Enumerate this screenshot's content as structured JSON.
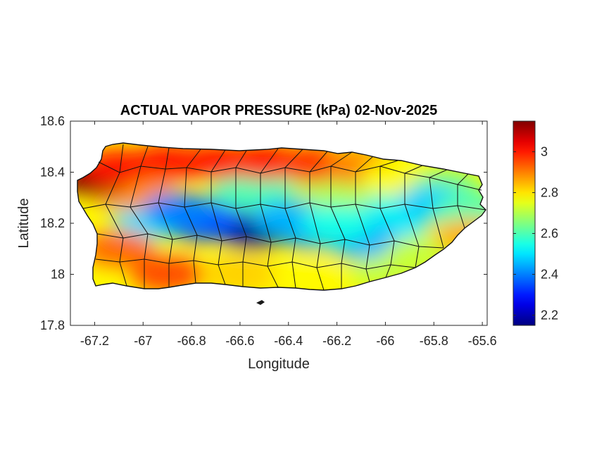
{
  "chart_data": {
    "type": "heatmap",
    "title": "ACTUAL VAPOR PRESSURE (kPa) 02-Nov-2025",
    "xlabel": "Longitude",
    "ylabel": "Latitude",
    "xlim": [
      -67.3,
      -65.58
    ],
    "ylim": [
      17.8,
      18.6
    ],
    "x_ticks": [
      -67.2,
      -67,
      -66.8,
      -66.6,
      -66.4,
      -66.2,
      -66,
      -65.8,
      -65.6
    ],
    "x_tick_labels": [
      "-67.2",
      "-67",
      "-66.8",
      "-66.6",
      "-66.4",
      "-66.2",
      "-66",
      "-65.8",
      "-65.6"
    ],
    "y_ticks": [
      17.8,
      18,
      18.2,
      18.4,
      18.6
    ],
    "y_tick_labels": [
      "17.8",
      "18",
      "18.2",
      "18.4",
      "18.6"
    ],
    "colorbar": {
      "colormap": "jet",
      "range": [
        2.15,
        3.15
      ],
      "ticks": [
        2.2,
        2.4,
        2.6,
        2.8,
        3.0
      ],
      "tick_labels": [
        "2.2",
        "2.4",
        "2.6",
        "2.8",
        "3"
      ]
    },
    "grid": false,
    "field_points": [
      {
        "lon": -67.2,
        "lat": 18.38,
        "value": 3.15
      },
      {
        "lon": -67.1,
        "lat": 18.42,
        "value": 3.0
      },
      {
        "lon": -66.9,
        "lat": 18.44,
        "value": 3.0
      },
      {
        "lon": -66.7,
        "lat": 18.44,
        "value": 3.0
      },
      {
        "lon": -66.5,
        "lat": 18.44,
        "value": 3.0
      },
      {
        "lon": -66.3,
        "lat": 18.43,
        "value": 2.98
      },
      {
        "lon": -66.1,
        "lat": 18.42,
        "value": 2.9
      },
      {
        "lon": -65.95,
        "lat": 18.38,
        "value": 2.78
      },
      {
        "lon": -65.75,
        "lat": 18.34,
        "value": 2.65
      },
      {
        "lon": -65.8,
        "lat": 18.28,
        "value": 2.48
      },
      {
        "lon": -65.65,
        "lat": 18.25,
        "value": 2.6
      },
      {
        "lon": -66.55,
        "lat": 18.17,
        "value": 2.15
      },
      {
        "lon": -66.75,
        "lat": 18.2,
        "value": 2.35
      },
      {
        "lon": -66.85,
        "lat": 18.25,
        "value": 2.4
      },
      {
        "lon": -66.4,
        "lat": 18.22,
        "value": 2.45
      },
      {
        "lon": -66.1,
        "lat": 18.13,
        "value": 2.45
      },
      {
        "lon": -66.2,
        "lat": 18.2,
        "value": 2.55
      },
      {
        "lon": -67.1,
        "lat": 18.1,
        "value": 2.92
      },
      {
        "lon": -66.9,
        "lat": 18.0,
        "value": 2.95
      },
      {
        "lon": -66.6,
        "lat": 18.0,
        "value": 2.82
      },
      {
        "lon": -66.3,
        "lat": 17.98,
        "value": 2.78
      },
      {
        "lon": -66.0,
        "lat": 18.0,
        "value": 2.72
      },
      {
        "lon": -65.85,
        "lat": 18.08,
        "value": 2.72
      },
      {
        "lon": -65.65,
        "lat": 18.15,
        "value": 2.85
      }
    ]
  }
}
